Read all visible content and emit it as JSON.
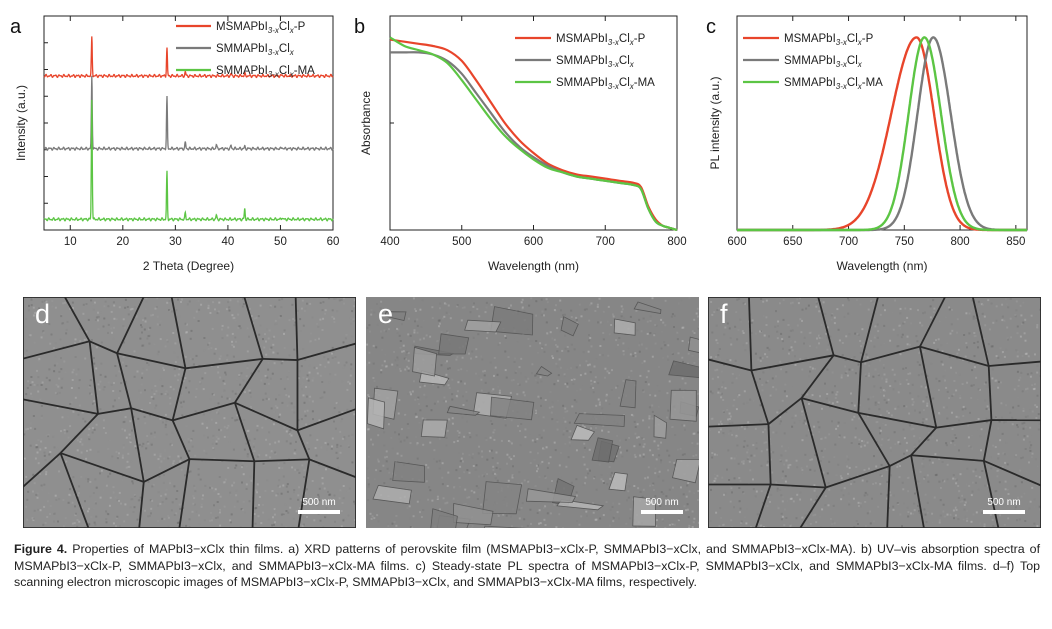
{
  "colors": {
    "red": "#e8452b",
    "gray": "#7a7a7a",
    "green": "#5cc544",
    "sem_d": "#8f8f8f",
    "sem_e": "#868686",
    "sem_f": "#8a8a8a"
  },
  "legend": {
    "red_prefix": "MSMAPbI",
    "red_sub": "3-x",
    "red_mid": "Cl",
    "red_sub2": "x",
    "red_suffix": "-P",
    "gray_prefix": "SMMAPbI",
    "gray_sub": "3-x",
    "gray_mid": "Cl",
    "gray_sub2": "x",
    "green_prefix": "SMMAPbI",
    "green_sub": "3-x",
    "green_mid": "Cl",
    "green_sub2": "x",
    "green_suffix": "-MA"
  },
  "chart_data": [
    {
      "panel": "a",
      "type": "line",
      "xlabel": "2 Theta (Degree)",
      "ylabel": "Intensity (a.u.)",
      "xlim": [
        5,
        60
      ],
      "xticks": [
        10,
        20,
        30,
        40,
        50,
        60
      ],
      "series": [
        {
          "name": "MSMAPbI3-xClx-P",
          "color": "red",
          "baseline": 0.72,
          "peaks": [
            [
              14.1,
              0.18
            ],
            [
              28.4,
              0.13
            ],
            [
              31.9,
              0.02
            ],
            [
              40.6,
              0.01
            ],
            [
              43.2,
              0.01
            ],
            [
              50.3,
              0.005
            ]
          ]
        },
        {
          "name": "SMMAPbI3-xClx",
          "color": "gray",
          "baseline": 0.38,
          "peaks": [
            [
              14.1,
              0.34
            ],
            [
              28.4,
              0.24
            ],
            [
              31.9,
              0.03
            ],
            [
              37.8,
              0.02
            ],
            [
              40.6,
              0.015
            ],
            [
              43.2,
              0.01
            ],
            [
              50.3,
              0.008
            ]
          ]
        },
        {
          "name": "SMMAPbI3-xClx-MA",
          "color": "green",
          "baseline": 0.05,
          "peaks": [
            [
              14.1,
              0.56
            ],
            [
              28.4,
              0.22
            ],
            [
              31.9,
              0.03
            ],
            [
              37.8,
              0.02
            ],
            [
              43.2,
              0.05
            ],
            [
              50.3,
              0.01
            ]
          ]
        }
      ]
    },
    {
      "panel": "b",
      "type": "line",
      "xlabel": "Wavelength (nm)",
      "ylabel": "Absorbance",
      "xlim": [
        400,
        800
      ],
      "xticks": [
        400,
        500,
        600,
        700,
        800
      ],
      "series": [
        {
          "name": "MSMAPbI3-xClx-P",
          "color": "red",
          "x": [
            400,
            420,
            440,
            460,
            480,
            500,
            520,
            540,
            560,
            580,
            600,
            620,
            640,
            660,
            680,
            700,
            720,
            740,
            750,
            760,
            770,
            780,
            790,
            800
          ],
          "y": [
            0.89,
            0.88,
            0.87,
            0.86,
            0.84,
            0.79,
            0.7,
            0.6,
            0.5,
            0.42,
            0.36,
            0.31,
            0.28,
            0.26,
            0.25,
            0.24,
            0.23,
            0.22,
            0.2,
            0.11,
            0.05,
            0.02,
            0.01,
            0.0
          ]
        },
        {
          "name": "SMMAPbI3-xClx",
          "color": "gray",
          "x": [
            400,
            420,
            440,
            460,
            480,
            500,
            520,
            540,
            560,
            580,
            600,
            620,
            640,
            660,
            680,
            700,
            720,
            740,
            750,
            760,
            770,
            780,
            790,
            800
          ],
          "y": [
            0.83,
            0.83,
            0.83,
            0.82,
            0.79,
            0.73,
            0.64,
            0.55,
            0.46,
            0.39,
            0.34,
            0.3,
            0.27,
            0.25,
            0.24,
            0.23,
            0.22,
            0.21,
            0.19,
            0.1,
            0.04,
            0.02,
            0.01,
            0.0
          ]
        },
        {
          "name": "SMMAPbI3-xClx-MA",
          "color": "green",
          "x": [
            400,
            420,
            440,
            460,
            480,
            500,
            520,
            540,
            560,
            580,
            600,
            620,
            640,
            660,
            680,
            700,
            720,
            740,
            750,
            760,
            770,
            780,
            790,
            800
          ],
          "y": [
            0.9,
            0.86,
            0.84,
            0.82,
            0.78,
            0.7,
            0.61,
            0.52,
            0.44,
            0.38,
            0.33,
            0.29,
            0.27,
            0.25,
            0.24,
            0.23,
            0.22,
            0.21,
            0.19,
            0.1,
            0.04,
            0.02,
            0.01,
            0.0
          ]
        }
      ]
    },
    {
      "panel": "c",
      "type": "line",
      "xlabel": "Wavelength (nm)",
      "ylabel": "PL intensity (a.u.)",
      "xlim": [
        600,
        860
      ],
      "xticks": [
        600,
        650,
        700,
        750,
        800,
        850
      ],
      "series": [
        {
          "name": "MSMAPbI3-xClx-P",
          "color": "red",
          "peak": 761,
          "left_sigma": 32,
          "right_sigma": 22
        },
        {
          "name": "SMMAPbI3-xClx",
          "color": "gray",
          "peak": 776,
          "left_sigma": 20,
          "right_sigma": 22
        },
        {
          "name": "SMMAPbI3-xClx-MA",
          "color": "green",
          "peak": 768,
          "left_sigma": 20,
          "right_sigma": 21
        }
      ]
    }
  ],
  "panels": {
    "a_letter": "a",
    "b_letter": "b",
    "c_letter": "c",
    "d_letter": "d",
    "e_letter": "e",
    "f_letter": "f"
  },
  "scale_bars": {
    "d": "500 nm",
    "e": "500 nm",
    "f": "500 nm"
  },
  "caption": {
    "label": "Figure 4.",
    "text": "Properties of MAPbI3−xClx thin films. a) XRD patterns of perovskite film (MSMAPbI3−xClx-P, SMMAPbI3−xClx, and SMMAPbI3−xClx-MA). b) UV–vis absorption spectra of MSMAPbI3−xClx-P, SMMAPbI3−xClx, and SMMAPbI3−xClx-MA films. c) Steady-state PL spectra of MSMAPbI3−xClx-P, SMMAPbI3−xClx, and SMMAPbI3−xClx-MA films. d–f) Top scanning electron microscopic images of MSMAPbI3−xClx-P, SMMAPbI3−xClx, and SMMAPbI3−xClx-MA films, respectively."
  }
}
